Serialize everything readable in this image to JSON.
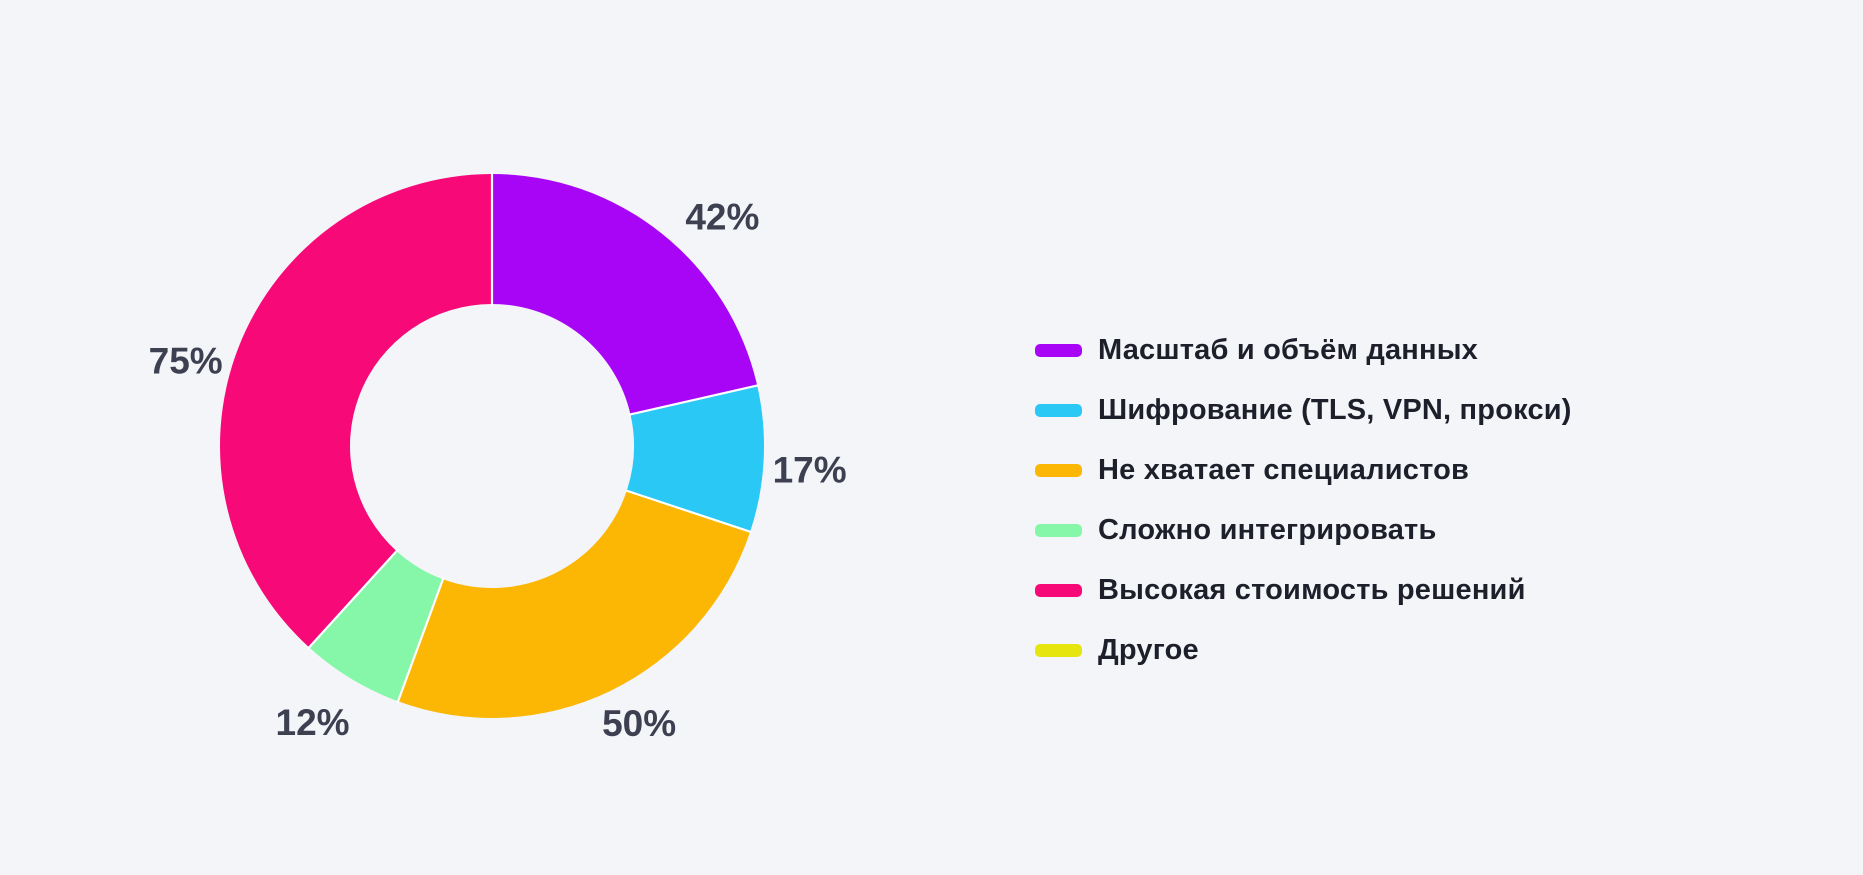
{
  "page": {
    "background_color": "#f4f5f9",
    "text_color_labels": "#3d4051",
    "text_color_legend": "#1d1f2b"
  },
  "chart_data": {
    "type": "pie",
    "variant": "donut",
    "title": "",
    "unit": "%",
    "legend_position": "right",
    "start_angle": "top",
    "direction": "clockwise",
    "series": [
      {
        "label": "Масштаб и объём данных",
        "value": 42,
        "display": "42%",
        "color": "#a805f7"
      },
      {
        "label": "Шифрование (TLS, VPN, прокси)",
        "value": 17,
        "display": "17%",
        "color": "#29c8f5"
      },
      {
        "label": "Не хватает специалистов",
        "value": 50,
        "display": "50%",
        "color": "#fcb705"
      },
      {
        "label": "Сложно интегрировать",
        "value": 12,
        "display": "12%",
        "color": "#86f7a9"
      },
      {
        "label": "Высокая стоимость решений",
        "value": 75,
        "display": "75%",
        "color": "#f70977"
      },
      {
        "label": "Другое",
        "value": 0,
        "display": "",
        "color": "#e6e50e"
      }
    ]
  }
}
